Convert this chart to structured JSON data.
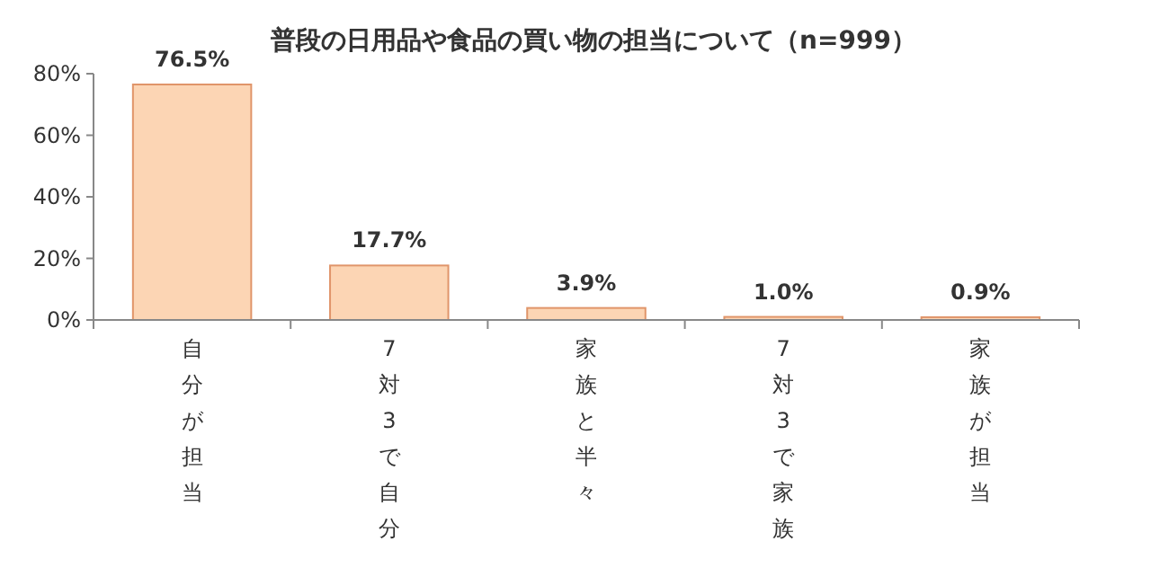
{
  "chart_data": {
    "type": "bar",
    "title": "普段の日用品や食品の買い物の担当について（n=999）",
    "categories": [
      "自分が担当",
      "7対3で自分",
      "家族と半々",
      "7対3で家族",
      "家族が担当"
    ],
    "values": [
      76.5,
      17.7,
      3.9,
      1.0,
      0.9
    ],
    "value_labels": [
      "76.5%",
      "17.7%",
      "3.9%",
      "1.0%",
      "0.9%"
    ],
    "color": "#fcd5b4",
    "ylim": [
      0,
      80
    ],
    "yticks": [
      {
        "value": 0,
        "label": "0%"
      },
      {
        "value": 20,
        "label": "20%"
      },
      {
        "value": 40,
        "label": "40%"
      },
      {
        "value": 60,
        "label": "60%"
      },
      {
        "value": 80,
        "label": "80%"
      }
    ],
    "grid": false
  }
}
